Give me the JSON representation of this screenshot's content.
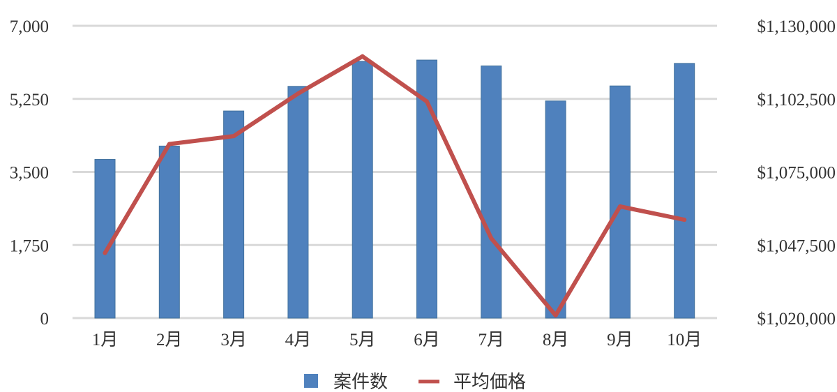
{
  "chart_data": {
    "type": "bar",
    "categories": [
      "1月",
      "2月",
      "3月",
      "4月",
      "5月",
      "6月",
      "7月",
      "8月",
      "9月",
      "10月"
    ],
    "series": [
      {
        "name": "案件数",
        "type": "bar",
        "axis": "left",
        "color": "#4f81bd",
        "values": [
          3800,
          4120,
          4960,
          5550,
          6150,
          6180,
          6040,
          5200,
          5560,
          6100
        ]
      },
      {
        "name": "平均価格",
        "type": "line",
        "axis": "right",
        "color": "#c0504d",
        "values": [
          1044500,
          1085500,
          1088500,
          1104500,
          1118500,
          1101500,
          1050000,
          1021000,
          1062000,
          1057000
        ]
      }
    ],
    "y_left": {
      "min": 0,
      "max": 7000,
      "ticks": [
        0,
        1750,
        3500,
        5250,
        7000
      ],
      "tick_labels": [
        "0",
        "1,750",
        "3,500",
        "5,250",
        "7,000"
      ]
    },
    "y_right": {
      "min": 1020000,
      "max": 1130000,
      "ticks": [
        1020000,
        1047500,
        1075000,
        1102500,
        1130000
      ],
      "tick_labels": [
        "$1,020,000",
        "$1,047,500",
        "$1,075,000",
        "$1,102,500",
        "$1,130,000"
      ]
    },
    "grid": true,
    "legend_position": "bottom"
  }
}
